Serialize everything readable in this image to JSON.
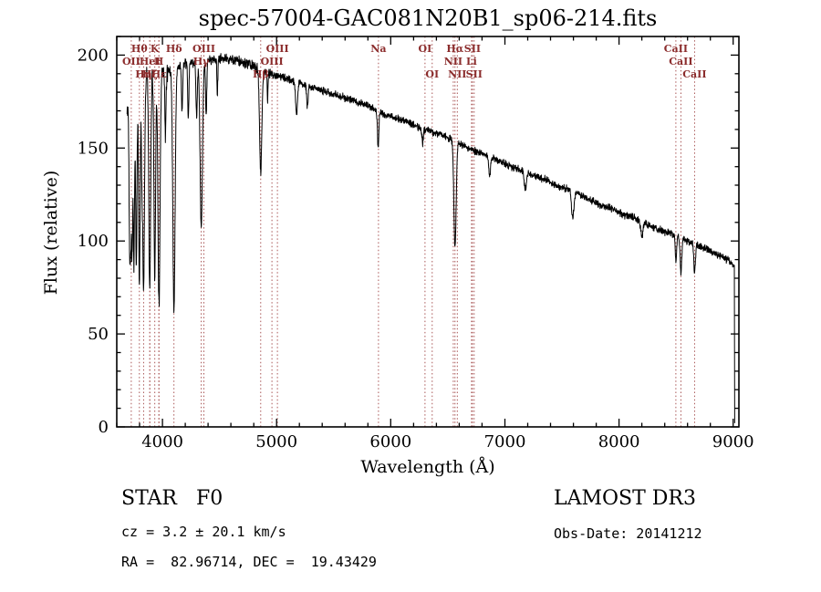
{
  "title": "spec-57004-GAC081N20B1_sp06-214.fits",
  "annotations": {
    "class_label": "STAR   F0",
    "survey": "LAMOST DR3",
    "cz": "cz = 3.2 ± 20.1 km/s",
    "obs_date": "Obs-Date: 20141212",
    "radec": "RA =  82.96714, DEC =  19.43429"
  },
  "chart_data": {
    "type": "line",
    "title": "spec-57004-GAC081N20B1_sp06-214.fits",
    "xlabel": "Wavelength (Å)",
    "ylabel": "Flux (relative)",
    "xlim": [
      3600,
      9050
    ],
    "ylim": [
      0,
      210
    ],
    "xticks": [
      4000,
      5000,
      6000,
      7000,
      8000,
      9000
    ],
    "yticks": [
      0,
      50,
      100,
      150,
      200
    ],
    "x_minor_step": 200,
    "y_minor_step": 10,
    "grid": false,
    "legend": "none",
    "trace_color": "#000000",
    "line_marker_color": "#a04444",
    "line_label_color": "#8b2c2c",
    "label_rows_y": [
      57,
      71,
      85
    ],
    "spectral_lines": [
      {
        "label": "OII",
        "wavelength": 3727,
        "row": 1
      },
      {
        "label": "Hθ",
        "wavelength": 3798,
        "row": 0
      },
      {
        "label": "Hη",
        "wavelength": 3835,
        "row": 2
      },
      {
        "label": "HeI",
        "wavelength": 3889,
        "row": 1
      },
      {
        "label": "Hζ",
        "wavelength": 3889,
        "row": 2
      },
      {
        "label": "K",
        "wavelength": 3933,
        "row": 0
      },
      {
        "label": "H",
        "wavelength": 3968,
        "row": 1
      },
      {
        "label": "Hε",
        "wavelength": 3970,
        "row": 2
      },
      {
        "label": "Hδ",
        "wavelength": 4101,
        "row": 0
      },
      {
        "label": "Hγ",
        "wavelength": 4340,
        "row": 1
      },
      {
        "label": "OIII",
        "wavelength": 4363,
        "row": 0
      },
      {
        "label": "Hβ",
        "wavelength": 4861,
        "row": 2
      },
      {
        "label": "OIII",
        "wavelength": 4959,
        "row": 1
      },
      {
        "label": "OIII",
        "wavelength": 5007,
        "row": 0
      },
      {
        "label": "Na",
        "wavelength": 5893,
        "row": 0
      },
      {
        "label": "OI",
        "wavelength": 6300,
        "row": 0
      },
      {
        "label": "OI",
        "wavelength": 6363,
        "row": 2
      },
      {
        "label": "NII",
        "wavelength": 6548,
        "row": 1
      },
      {
        "label": "Hα",
        "wavelength": 6563,
        "row": 0
      },
      {
        "label": "NII",
        "wavelength": 6583,
        "row": 2
      },
      {
        "label": "Li",
        "wavelength": 6708,
        "row": 1
      },
      {
        "label": "SII",
        "wavelength": 6716,
        "row": 0
      },
      {
        "label": "SII",
        "wavelength": 6731,
        "row": 2
      },
      {
        "label": "CaII",
        "wavelength": 8498,
        "row": 0
      },
      {
        "label": "CaII",
        "wavelength": 8542,
        "row": 1
      },
      {
        "label": "CaII",
        "wavelength": 8662,
        "row": 2
      }
    ],
    "continuum": [
      [
        3690,
        168
      ],
      [
        3720,
        180
      ],
      [
        3760,
        186
      ],
      [
        3800,
        188
      ],
      [
        3850,
        190
      ],
      [
        3900,
        191
      ],
      [
        3950,
        191
      ],
      [
        4000,
        190
      ],
      [
        4060,
        192
      ],
      [
        4150,
        194
      ],
      [
        4250,
        196
      ],
      [
        4350,
        196
      ],
      [
        4450,
        198
      ],
      [
        4550,
        198
      ],
      [
        4650,
        197
      ],
      [
        4750,
        195
      ],
      [
        4850,
        193
      ],
      [
        4950,
        190
      ],
      [
        5050,
        188
      ],
      [
        5150,
        186
      ],
      [
        5250,
        184
      ],
      [
        5350,
        182
      ],
      [
        5450,
        180
      ],
      [
        5550,
        178
      ],
      [
        5650,
        176
      ],
      [
        5750,
        174
      ],
      [
        5850,
        171
      ],
      [
        5950,
        168
      ],
      [
        6050,
        166
      ],
      [
        6150,
        164
      ],
      [
        6250,
        161
      ],
      [
        6350,
        159
      ],
      [
        6450,
        157
      ],
      [
        6550,
        154
      ],
      [
        6650,
        151
      ],
      [
        6750,
        148
      ],
      [
        6850,
        146
      ],
      [
        6950,
        143
      ],
      [
        7050,
        140
      ],
      [
        7150,
        138
      ],
      [
        7250,
        135
      ],
      [
        7350,
        133
      ],
      [
        7450,
        130
      ],
      [
        7550,
        128
      ],
      [
        7650,
        125
      ],
      [
        7750,
        122
      ],
      [
        7850,
        119
      ],
      [
        7950,
        117
      ],
      [
        8050,
        114
      ],
      [
        8150,
        112
      ],
      [
        8250,
        109
      ],
      [
        8350,
        106
      ],
      [
        8450,
        104
      ],
      [
        8550,
        101
      ],
      [
        8650,
        99
      ],
      [
        8750,
        96
      ],
      [
        8850,
        93
      ],
      [
        8950,
        90
      ],
      [
        9010,
        87
      ]
    ],
    "absorption_lines": [
      [
        3712,
        70,
        5
      ],
      [
        3722,
        75,
        5
      ],
      [
        3734,
        85,
        5
      ],
      [
        3750,
        95,
        6
      ],
      [
        3771,
        100,
        6
      ],
      [
        3798,
        110,
        7
      ],
      [
        3820,
        40,
        5
      ],
      [
        3835,
        115,
        8
      ],
      [
        3889,
        120,
        8
      ],
      [
        3933,
        110,
        7
      ],
      [
        3970,
        125,
        9
      ],
      [
        4026,
        35,
        5
      ],
      [
        4101,
        130,
        10
      ],
      [
        4172,
        25,
        5
      ],
      [
        4227,
        30,
        5
      ],
      [
        4300,
        30,
        6
      ],
      [
        4340,
        90,
        10
      ],
      [
        4383,
        30,
        5
      ],
      [
        4481,
        20,
        4
      ],
      [
        4861,
        55,
        10
      ],
      [
        4921,
        15,
        4
      ],
      [
        5175,
        18,
        8
      ],
      [
        5270,
        12,
        6
      ],
      [
        5890,
        20,
        6
      ],
      [
        6280,
        8,
        6
      ],
      [
        6563,
        57,
        10
      ],
      [
        6867,
        10,
        8
      ],
      [
        7180,
        9,
        10
      ],
      [
        7594,
        14,
        10
      ],
      [
        8200,
        8,
        10
      ],
      [
        8498,
        14,
        6
      ],
      [
        8542,
        18,
        7
      ],
      [
        8662,
        16,
        7
      ]
    ],
    "wavelength_range": [
      3690,
      9010
    ],
    "sample_step": 2,
    "noise": {
      "seed": 42,
      "amp_blue": 6.5,
      "amp_mid": 3.2,
      "amp_red": 2.4,
      "blue_cutoff": 4050,
      "mid_cutoff": 4950
    },
    "edge_drop": {
      "wavelength": 9013,
      "flux_floor": 2
    }
  }
}
